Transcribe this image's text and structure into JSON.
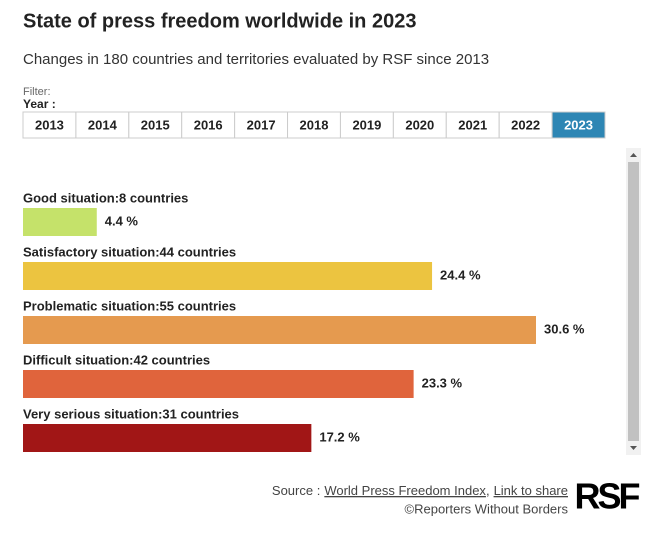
{
  "header": {
    "title": "State of press freedom worldwide in 2023",
    "subtitle": "Changes in 180 countries and territories evaluated by RSF since 2013"
  },
  "filter": {
    "label": "Filter:",
    "year_label": "Year :",
    "years": [
      "2013",
      "2014",
      "2015",
      "2016",
      "2017",
      "2018",
      "2019",
      "2020",
      "2021",
      "2022",
      "2023"
    ],
    "selected": "2023"
  },
  "chart_data": {
    "type": "bar",
    "orientation": "horizontal",
    "categories": [
      "Good situation:8 countries",
      "Satisfactory situation:44 countries",
      "Problematic situation:55 countries",
      "Difficult situation:42 countries",
      "Very serious situation:31 countries"
    ],
    "values": [
      4.4,
      24.4,
      30.6,
      23.3,
      17.2
    ],
    "value_labels": [
      "4.4 %",
      "24.4 %",
      "30.6 %",
      "23.3 %",
      "17.2 %"
    ],
    "colors": [
      "#c5e26a",
      "#ecc440",
      "#e59a4f",
      "#e0643c",
      "#a11616"
    ]
  },
  "footer": {
    "source_label": "Source :",
    "source_link": "World Press Freedom Index",
    "separator": ",",
    "share_link": "Link to share",
    "copyright": "©Reporters Without Borders",
    "logo": "RSF"
  }
}
